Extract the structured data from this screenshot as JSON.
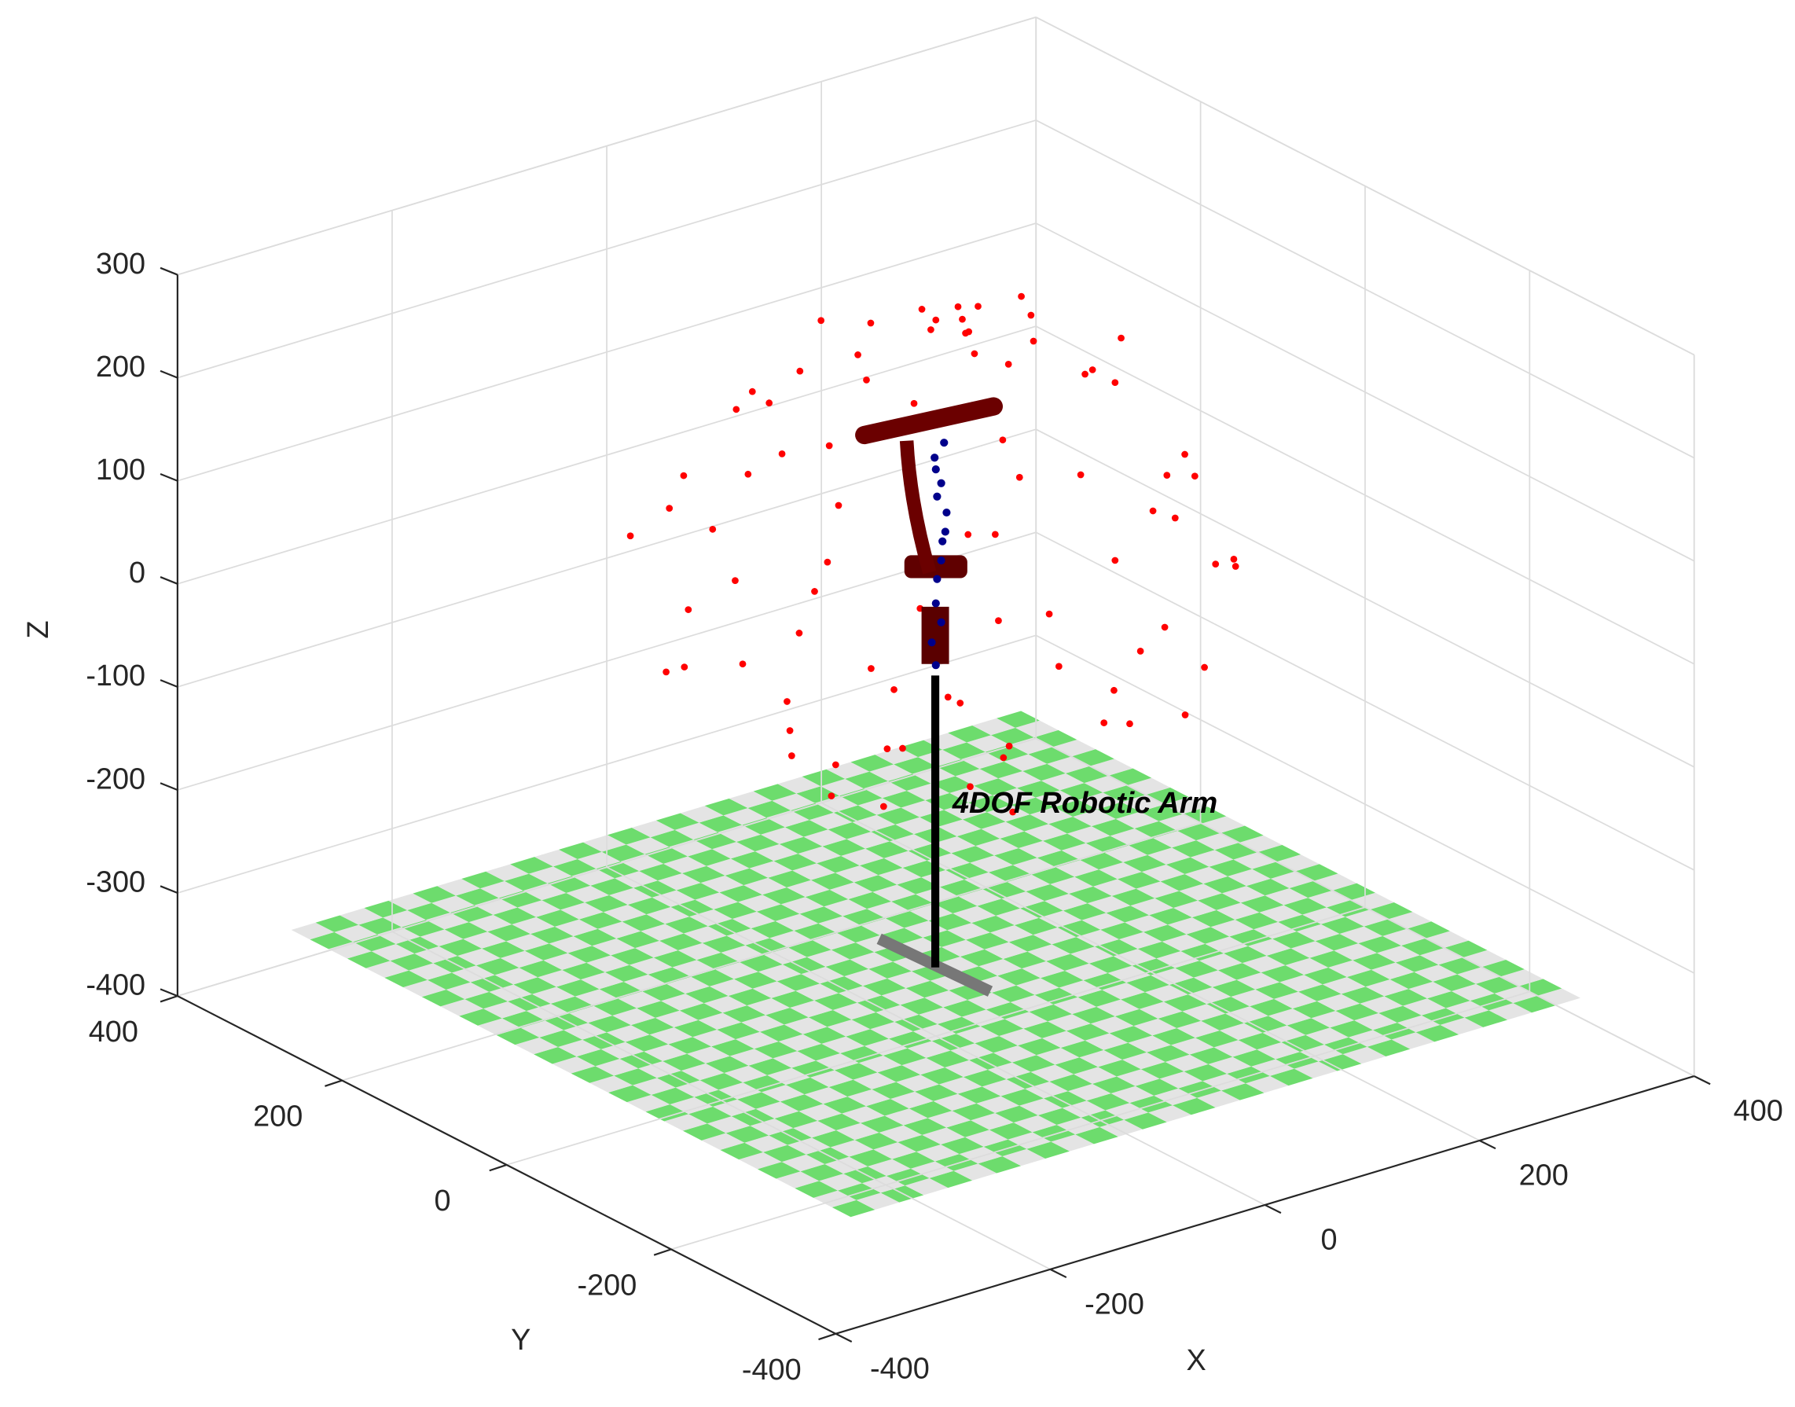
{
  "chart_data": {
    "type": "scatter3d",
    "xlabel": "X",
    "ylabel": "Y",
    "zlabel": "Z",
    "annotation": "4DOF Robotic Arm",
    "xlim": [
      -400,
      400
    ],
    "ylim": [
      -400,
      400
    ],
    "zlim": [
      -400,
      300
    ],
    "xticks": [
      -400,
      -200,
      0,
      200,
      400
    ],
    "yticks": [
      -400,
      -200,
      0,
      200,
      400
    ],
    "zticks": [
      -400,
      -300,
      -200,
      -100,
      0,
      100,
      200,
      300
    ],
    "grid": true,
    "series": [
      {
        "color": "#ff0000",
        "x": [
          -200,
          -170,
          -150,
          -130,
          -120,
          -100,
          -90,
          -80,
          -70,
          -60,
          -50,
          -40,
          -30,
          -20,
          -10,
          0,
          10,
          20,
          30,
          40,
          50,
          60,
          70,
          80,
          90,
          100,
          110,
          120,
          130,
          140,
          150,
          160,
          170,
          180,
          190,
          200,
          210,
          -210,
          -190,
          -160,
          -140,
          -110,
          -95,
          -75,
          -55,
          -35,
          -15,
          5,
          25,
          45,
          65,
          85,
          105,
          125,
          145,
          165,
          185,
          195,
          -185,
          -165,
          -145,
          -125,
          -105,
          -85,
          -65,
          -45,
          -25,
          -5,
          15,
          35,
          55,
          75,
          95,
          115,
          135,
          155,
          175,
          -200,
          -175,
          -20,
          10,
          -30,
          20,
          0,
          40
        ],
        "y": [
          40,
          -90,
          110,
          -40,
          150,
          -160,
          60,
          -20,
          180,
          -120,
          100,
          -190,
          20,
          140,
          -60,
          0,
          200,
          -150,
          90,
          -30,
          160,
          -200,
          40,
          -100,
          130,
          -60,
          170,
          -170,
          20,
          -120,
          80,
          -40,
          120,
          -80,
          30,
          -20,
          10,
          -30,
          80,
          -130,
          20,
          -80,
          200,
          -170,
          50,
          -90,
          120,
          -210,
          180,
          -60,
          70,
          -180,
          110,
          -140,
          150,
          -10,
          60,
          -110,
          130,
          -40,
          -170,
          60,
          -10,
          -200,
          150,
          -140,
          210,
          -100,
          60,
          -190,
          190,
          -120,
          20,
          -190,
          100,
          -160,
          140,
          -80,
          0,
          -20,
          30,
          40,
          -10,
          -40,
          20
        ],
        "z": [
          60,
          150,
          -40,
          230,
          120,
          20,
          -100,
          270,
          40,
          -90,
          220,
          100,
          -120,
          -60,
          290,
          295,
          80,
          200,
          -110,
          -130,
          180,
          60,
          270,
          -80,
          -30,
          240,
          110,
          -10,
          -90,
          170,
          220,
          -60,
          40,
          120,
          -10,
          90,
          40,
          120,
          -20,
          60,
          250,
          -110,
          60,
          180,
          -140,
          260,
          250,
          20,
          -50,
          285,
          -120,
          150,
          230,
          -70,
          -20,
          230,
          160,
          40,
          90,
          -60,
          130,
          240,
          -130,
          -10,
          -80,
          250,
          130,
          -140,
          -150,
          -30,
          20,
          260,
          280,
          100,
          -80,
          80,
          140,
          20,
          200,
          300,
          290,
          285,
          280,
          300,
          275
        ]
      },
      {
        "color": "#00008b",
        "x": [
          0,
          -5,
          0,
          5,
          5,
          10,
          5,
          10,
          5,
          5,
          0,
          5,
          0,
          0
        ],
        "y": [
          -10,
          -5,
          0,
          0,
          5,
          0,
          -5,
          5,
          0,
          5,
          0,
          0,
          5,
          0
        ],
        "z": [
          180,
          165,
          150,
          135,
          120,
          105,
          90,
          75,
          60,
          40,
          20,
          0,
          -20,
          -40
        ]
      }
    ]
  }
}
